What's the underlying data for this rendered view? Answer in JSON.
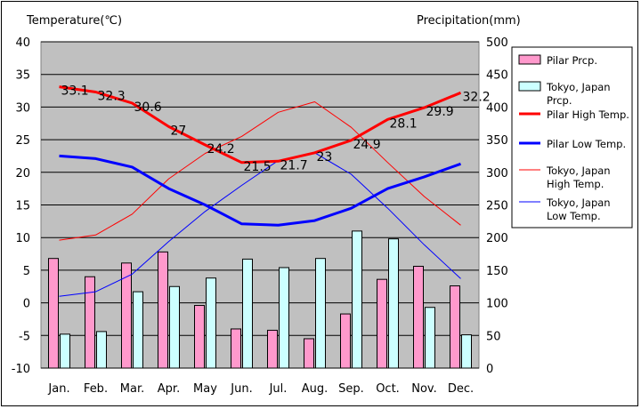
{
  "chart_data": {
    "type": "bar",
    "title": "",
    "y_left_label": "Temperature(℃)",
    "y_right_label": "Precipitation(mm)",
    "y_left_range": [
      -10,
      40
    ],
    "y_left_ticks": [
      -10,
      -5,
      0,
      5,
      10,
      15,
      20,
      25,
      30,
      35,
      40
    ],
    "y_right_range": [
      0,
      500
    ],
    "y_right_ticks": [
      0,
      50,
      100,
      150,
      200,
      250,
      300,
      350,
      400,
      450,
      500
    ],
    "grid": true,
    "legend_position": "right",
    "categories": [
      "Jan.",
      "Feb.",
      "Mar.",
      "Apr.",
      "May",
      "Jun.",
      "Jul.",
      "Aug.",
      "Sep.",
      "Oct.",
      "Nov.",
      "Dec."
    ],
    "series": [
      {
        "name": "Pilar Prcp.",
        "type": "bar",
        "axis": "right",
        "color": "#ff99cc",
        "values": [
          168,
          140,
          161,
          178,
          96,
          60,
          58,
          45,
          83,
          136,
          156,
          126
        ]
      },
      {
        "name": "Tokyo, Japan Prcp.",
        "type": "bar",
        "axis": "right",
        "color": "#ccffff",
        "values": [
          52,
          56,
          117,
          125,
          138,
          167,
          154,
          168,
          210,
          198,
          93,
          51
        ]
      },
      {
        "name": "Pilar High Temp.",
        "type": "line",
        "axis": "left",
        "color": "#ff0000",
        "width": 3,
        "show_labels": true,
        "values": [
          33.1,
          32.3,
          30.6,
          27,
          24.2,
          21.5,
          21.7,
          23,
          24.9,
          28.1,
          29.9,
          32.2
        ]
      },
      {
        "name": "Pilar Low Temp.",
        "type": "line",
        "axis": "left",
        "color": "#0000ff",
        "width": 3,
        "values": [
          22.5,
          22.1,
          20.8,
          17.5,
          15,
          12.1,
          11.9,
          12.6,
          14.5,
          17.5,
          19.3,
          21.3
        ]
      },
      {
        "name": "Tokyo, Japan High Temp.",
        "type": "line",
        "axis": "left",
        "color": "#ff0000",
        "width": 1,
        "values": [
          9.6,
          10.4,
          13.6,
          19.0,
          22.9,
          25.5,
          29.2,
          30.8,
          26.9,
          21.5,
          16.3,
          11.9
        ]
      },
      {
        "name": "Tokyo, Japan Low Temp.",
        "type": "line",
        "axis": "left",
        "color": "#0000ff",
        "width": 1,
        "values": [
          1.0,
          1.7,
          4.4,
          9.4,
          14.0,
          18.0,
          21.8,
          23.0,
          19.7,
          14.5,
          8.9,
          3.7
        ]
      }
    ],
    "legend_lines": [
      [
        "Pilar Prcp."
      ],
      [
        "Tokyo, Japan",
        "Prcp."
      ],
      [
        "Pilar High Temp."
      ],
      [
        "Pilar Low Temp."
      ],
      [
        "Tokyo, Japan",
        "High Temp."
      ],
      [
        "Tokyo, Japan",
        "Low Temp."
      ]
    ]
  }
}
